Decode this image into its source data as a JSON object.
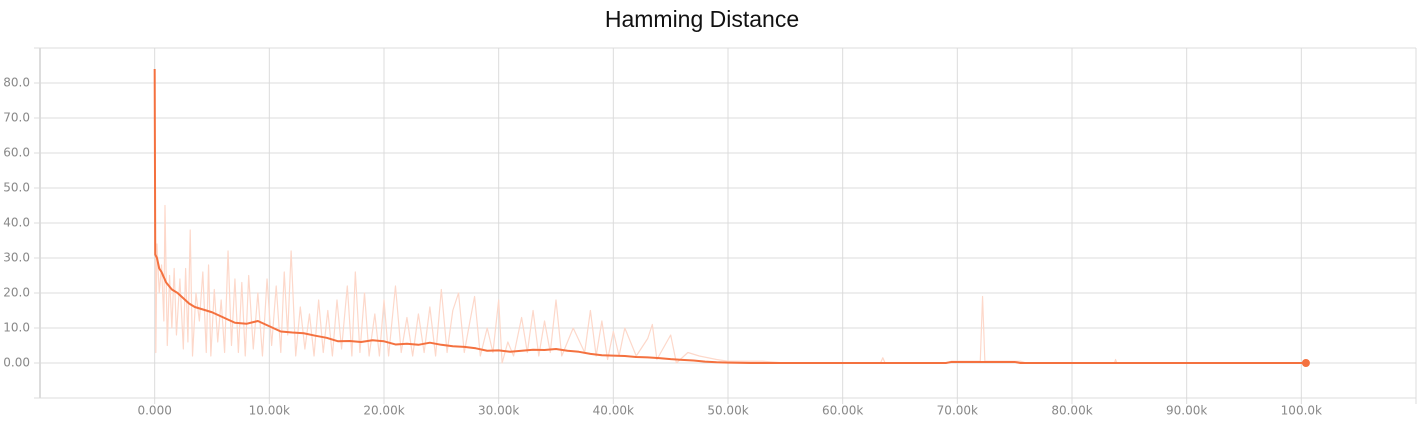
{
  "chart_data": {
    "type": "line",
    "title": "Hamming Distance",
    "xlim": [
      -10000,
      110000
    ],
    "ylim": [
      -10,
      90
    ],
    "xticks": [
      {
        "value": 0,
        "label": "0.000"
      },
      {
        "value": 10000,
        "label": "10.00k"
      },
      {
        "value": 20000,
        "label": "20.00k"
      },
      {
        "value": 30000,
        "label": "30.00k"
      },
      {
        "value": 40000,
        "label": "40.00k"
      },
      {
        "value": 50000,
        "label": "50.00k"
      },
      {
        "value": 60000,
        "label": "60.00k"
      },
      {
        "value": 70000,
        "label": "70.00k"
      },
      {
        "value": 80000,
        "label": "80.00k"
      },
      {
        "value": 90000,
        "label": "90.00k"
      },
      {
        "value": 100000,
        "label": "100.0k"
      }
    ],
    "yticks": [
      {
        "value": 0,
        "label": "0.00"
      },
      {
        "value": 10,
        "label": "10.0"
      },
      {
        "value": 20,
        "label": "20.0"
      },
      {
        "value": 30,
        "label": "30.0"
      },
      {
        "value": 40,
        "label": "40.0"
      },
      {
        "value": 50,
        "label": "50.0"
      },
      {
        "value": 60,
        "label": "60.0"
      },
      {
        "value": 70,
        "label": "70.0"
      },
      {
        "value": 80,
        "label": "80.0"
      }
    ],
    "grid": true,
    "series": [
      {
        "color": "#fdd8ca",
        "x": [
          0,
          100,
          200,
          400,
          600,
          800,
          900,
          1100,
          1300,
          1500,
          1700,
          1900,
          2200,
          2500,
          2700,
          2900,
          3100,
          3300,
          3600,
          3900,
          4200,
          4500,
          4700,
          4900,
          5200,
          5500,
          5800,
          6100,
          6400,
          6700,
          7000,
          7300,
          7600,
          7900,
          8200,
          8600,
          9000,
          9400,
          9800,
          10200,
          10600,
          11000,
          11300,
          11600,
          11900,
          12300,
          12700,
          13100,
          13500,
          13900,
          14300,
          14700,
          15100,
          15500,
          15900,
          16300,
          16800,
          17200,
          17500,
          17900,
          18300,
          18700,
          19200,
          19600,
          20000,
          20400,
          21000,
          21500,
          22000,
          22500,
          23000,
          23500,
          24000,
          24500,
          25000,
          25500,
          26000,
          26500,
          27000,
          27500,
          27900,
          28400,
          29000,
          29500,
          30000,
          30300,
          30800,
          31300,
          32000,
          32500,
          33000,
          33500,
          34000,
          34500,
          35000,
          35500,
          36500,
          37500,
          38000,
          38500,
          39000,
          39500,
          40000,
          40500,
          41000,
          42000,
          43000,
          43400,
          43800,
          45000,
          45500,
          46500,
          47500,
          49000,
          50000,
          53000,
          55000,
          63300,
          63500,
          63700,
          69000,
          69500,
          72000,
          72200,
          72400,
          75500,
          76000,
          83700,
          83800,
          83900,
          99000,
          100400
        ],
        "values": [
          84,
          3,
          34,
          20,
          28,
          12,
          45,
          5,
          25,
          10,
          27,
          8,
          24,
          4,
          27,
          6,
          38,
          2,
          20,
          12,
          26,
          3,
          28,
          2,
          21,
          6,
          18,
          3,
          32,
          5,
          24,
          3,
          23,
          2,
          25,
          4,
          20,
          2,
          24,
          5,
          22,
          3,
          26,
          8,
          32,
          2,
          16,
          4,
          14,
          2,
          18,
          3,
          15,
          2,
          18,
          4,
          22,
          2,
          26,
          3,
          20,
          2,
          14,
          2,
          18,
          2,
          22,
          3,
          13,
          2,
          14,
          3,
          16,
          2,
          21,
          3,
          15,
          20,
          3,
          12,
          19,
          2,
          10,
          3,
          18,
          0,
          6,
          2,
          13,
          3,
          15,
          2,
          12,
          3,
          18,
          2,
          10,
          3,
          15,
          2,
          12,
          1,
          9,
          2,
          10,
          2,
          7,
          11,
          1,
          8,
          0,
          3,
          2,
          1,
          0.5,
          0.5,
          0,
          0,
          1.5,
          0,
          0,
          0.5,
          0.5,
          19,
          0.5,
          0.5,
          0,
          0,
          1,
          0,
          0,
          0
        ]
      },
      {
        "color": "#f4713f",
        "x": [
          0,
          50,
          200,
          400,
          600,
          1000,
          1500,
          2000,
          2500,
          3000,
          3500,
          4000,
          5000,
          6000,
          7000,
          8000,
          9000,
          10000,
          11000,
          12000,
          13000,
          14000,
          15000,
          16000,
          17000,
          18000,
          19000,
          20000,
          21000,
          22000,
          23000,
          24000,
          25000,
          26000,
          27000,
          28000,
          29000,
          30000,
          31000,
          32000,
          33000,
          34000,
          35000,
          36000,
          37000,
          38000,
          39000,
          40000,
          41000,
          42000,
          43000,
          44000,
          45000,
          46000,
          47000,
          48000,
          49000,
          50000,
          52000,
          60000,
          69000,
          69500,
          75000,
          75500,
          100400
        ],
        "values": [
          84,
          31,
          30,
          27,
          26,
          23,
          21,
          20,
          18.5,
          17,
          16,
          15.5,
          14.5,
          13,
          11.5,
          11.2,
          12,
          10.5,
          9,
          8.7,
          8.5,
          7.8,
          7.2,
          6.2,
          6.3,
          6,
          6.5,
          6.2,
          5.3,
          5.5,
          5.2,
          5.8,
          5.2,
          4.8,
          4.6,
          4.2,
          3.5,
          3.6,
          3.2,
          3.5,
          3.8,
          3.7,
          4,
          3.5,
          3.2,
          2.6,
          2.2,
          2.1,
          2,
          1.7,
          1.6,
          1.4,
          1.1,
          0.9,
          0.7,
          0.4,
          0.2,
          0.1,
          0,
          0,
          0,
          0.3,
          0.3,
          0,
          0
        ]
      }
    ]
  }
}
